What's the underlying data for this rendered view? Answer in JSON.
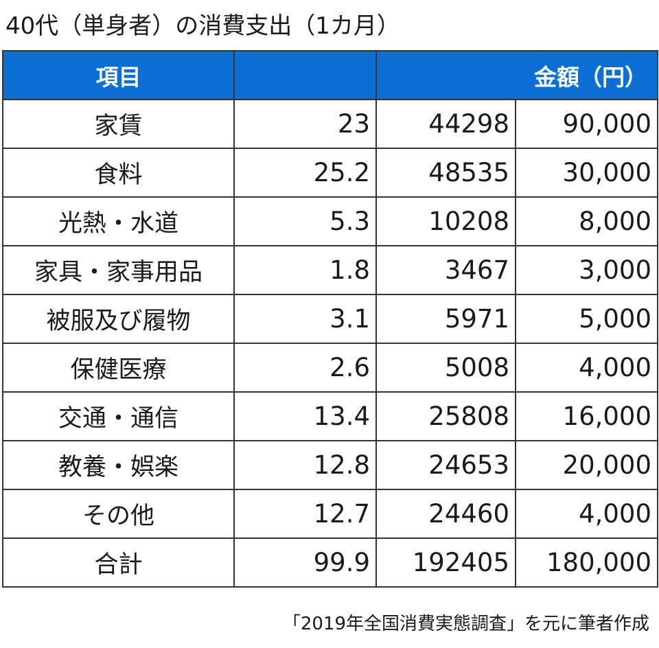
{
  "title": "40代（単身者）の消費支出（1カ月）",
  "table": {
    "headers": {
      "item": "項目",
      "blank1": "",
      "amount": "金額（円）"
    },
    "rows": [
      {
        "item": "家賃",
        "percent": "23",
        "average": "44298",
        "amount": "90,000"
      },
      {
        "item": "食料",
        "percent": "25.2",
        "average": "48535",
        "amount": "30,000"
      },
      {
        "item": "光熱・水道",
        "percent": "5.3",
        "average": "10208",
        "amount": "8,000"
      },
      {
        "item": "家具・家事用品",
        "percent": "1.8",
        "average": "3467",
        "amount": "3,000"
      },
      {
        "item": "被服及び履物",
        "percent": "3.1",
        "average": "5971",
        "amount": "5,000"
      },
      {
        "item": "保健医療",
        "percent": "2.6",
        "average": "5008",
        "amount": "4,000"
      },
      {
        "item": "交通・通信",
        "percent": "13.4",
        "average": "25808",
        "amount": "16,000"
      },
      {
        "item": "教養・娯楽",
        "percent": "12.8",
        "average": "24653",
        "amount": "20,000"
      },
      {
        "item": "その他",
        "percent": "12.7",
        "average": "24460",
        "amount": "4,000"
      },
      {
        "item": "合計",
        "percent": "99.9",
        "average": "192405",
        "amount": "180,000"
      }
    ]
  },
  "source": "「2019年全国消費実態調査」を元に筆者作成",
  "colors": {
    "header_bg": "#0b6fd6",
    "header_text": "#ffffff",
    "border": "#333333"
  }
}
